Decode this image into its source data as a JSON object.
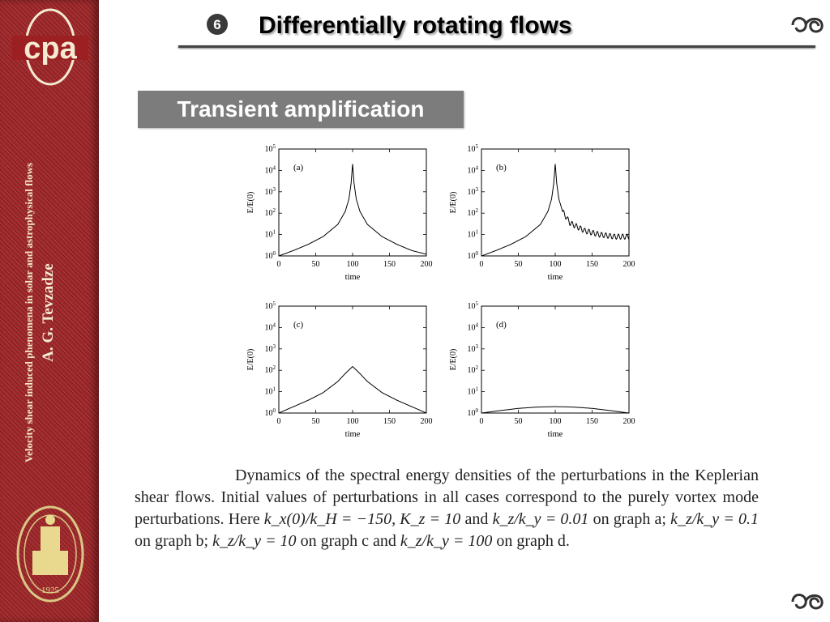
{
  "slide": {
    "number": "6",
    "title": "Differentially rotating flows",
    "section": "Transient amplification"
  },
  "sidebar": {
    "logo_text": "cpa",
    "subtitle": "Velocity shear induced phenomena in solar and astrophysical flows",
    "author": "A. G. Tevzadze",
    "seal_year": "1925"
  },
  "caption": {
    "p1": "Dynamics of the spectral energy densities of the perturbations in the Keplerian shear flows. Initial values of perturbations in all cases correspond to the purely vortex mode perturbations. Here ",
    "m1": "k_x(0)/k_H = −150,",
    "p2": " ",
    "m2": "K_z = 10",
    "p3": " and ",
    "m3": "k_z/k_y = 0.01",
    "p4": " on graph a; ",
    "m4": "k_z/k_y = 0.1",
    "p5": " on graph b; ",
    "m5": "k_z/k_y = 10",
    "p6": " on graph c and ",
    "m6": "k_z/k_y = 100",
    "p7": " on graph d."
  },
  "chart_data": [
    {
      "type": "line",
      "panel_label": "(a)",
      "xlabel": "time",
      "ylabel": "E/E(0)",
      "log_y": true,
      "xlim": [
        0,
        200
      ],
      "ylim": [
        1,
        100000
      ],
      "xticks": [
        "0",
        "50",
        "100",
        "150",
        "200"
      ],
      "yticks": [
        "10^0",
        "10^1",
        "10^2",
        "10^3",
        "10^4",
        "10^5"
      ],
      "x": [
        0,
        20,
        40,
        60,
        80,
        90,
        95,
        98,
        100,
        102,
        105,
        110,
        120,
        140,
        160,
        180,
        200
      ],
      "y": [
        1,
        1.8,
        3.5,
        8,
        30,
        120,
        450,
        2500,
        20000,
        2500,
        450,
        120,
        30,
        8,
        3.5,
        1.8,
        1.2
      ]
    },
    {
      "type": "line",
      "panel_label": "(b)",
      "xlabel": "time",
      "ylabel": "E/E(0)",
      "log_y": true,
      "xlim": [
        0,
        200
      ],
      "ylim": [
        1,
        100000
      ],
      "xticks": [
        "0",
        "50",
        "100",
        "150",
        "200"
      ],
      "yticks": [
        "10^0",
        "10^1",
        "10^2",
        "10^3",
        "10^4",
        "10^5"
      ],
      "x": [
        0,
        20,
        40,
        60,
        80,
        90,
        95,
        98,
        100,
        102,
        105,
        110,
        120,
        140,
        160,
        180,
        200
      ],
      "y": [
        1,
        1.8,
        3.5,
        8,
        30,
        120,
        450,
        2500,
        20000,
        2500,
        450,
        120,
        35,
        15,
        10,
        8,
        8
      ],
      "oscillating_after": 110
    },
    {
      "type": "line",
      "panel_label": "(c)",
      "xlabel": "time",
      "ylabel": "E/E(0)",
      "log_y": true,
      "xlim": [
        0,
        200
      ],
      "ylim": [
        1,
        100000
      ],
      "xticks": [
        "0",
        "50",
        "100",
        "150",
        "200"
      ],
      "yticks": [
        "10^0",
        "10^1",
        "10^2",
        "10^3",
        "10^4",
        "10^5"
      ],
      "x": [
        0,
        20,
        40,
        60,
        80,
        90,
        100,
        110,
        120,
        140,
        160,
        180,
        200
      ],
      "y": [
        1,
        2,
        4,
        9,
        30,
        70,
        150,
        70,
        30,
        9,
        4,
        2,
        1
      ]
    },
    {
      "type": "line",
      "panel_label": "(d)",
      "xlabel": "time",
      "ylabel": "E/E(0)",
      "log_y": true,
      "xlim": [
        0,
        200
      ],
      "ylim": [
        1,
        100000
      ],
      "xticks": [
        "0",
        "50",
        "100",
        "150",
        "200"
      ],
      "yticks": [
        "10^0",
        "10^1",
        "10^2",
        "10^3",
        "10^4",
        "10^5"
      ],
      "x": [
        0,
        25,
        50,
        75,
        100,
        125,
        150,
        175,
        200
      ],
      "y": [
        1,
        1.3,
        1.65,
        1.9,
        2,
        1.9,
        1.65,
        1.3,
        1
      ]
    }
  ],
  "colors": {
    "sidebar": "#9c1f22",
    "section_box": "#7c7c7c",
    "rule": "#444444"
  }
}
